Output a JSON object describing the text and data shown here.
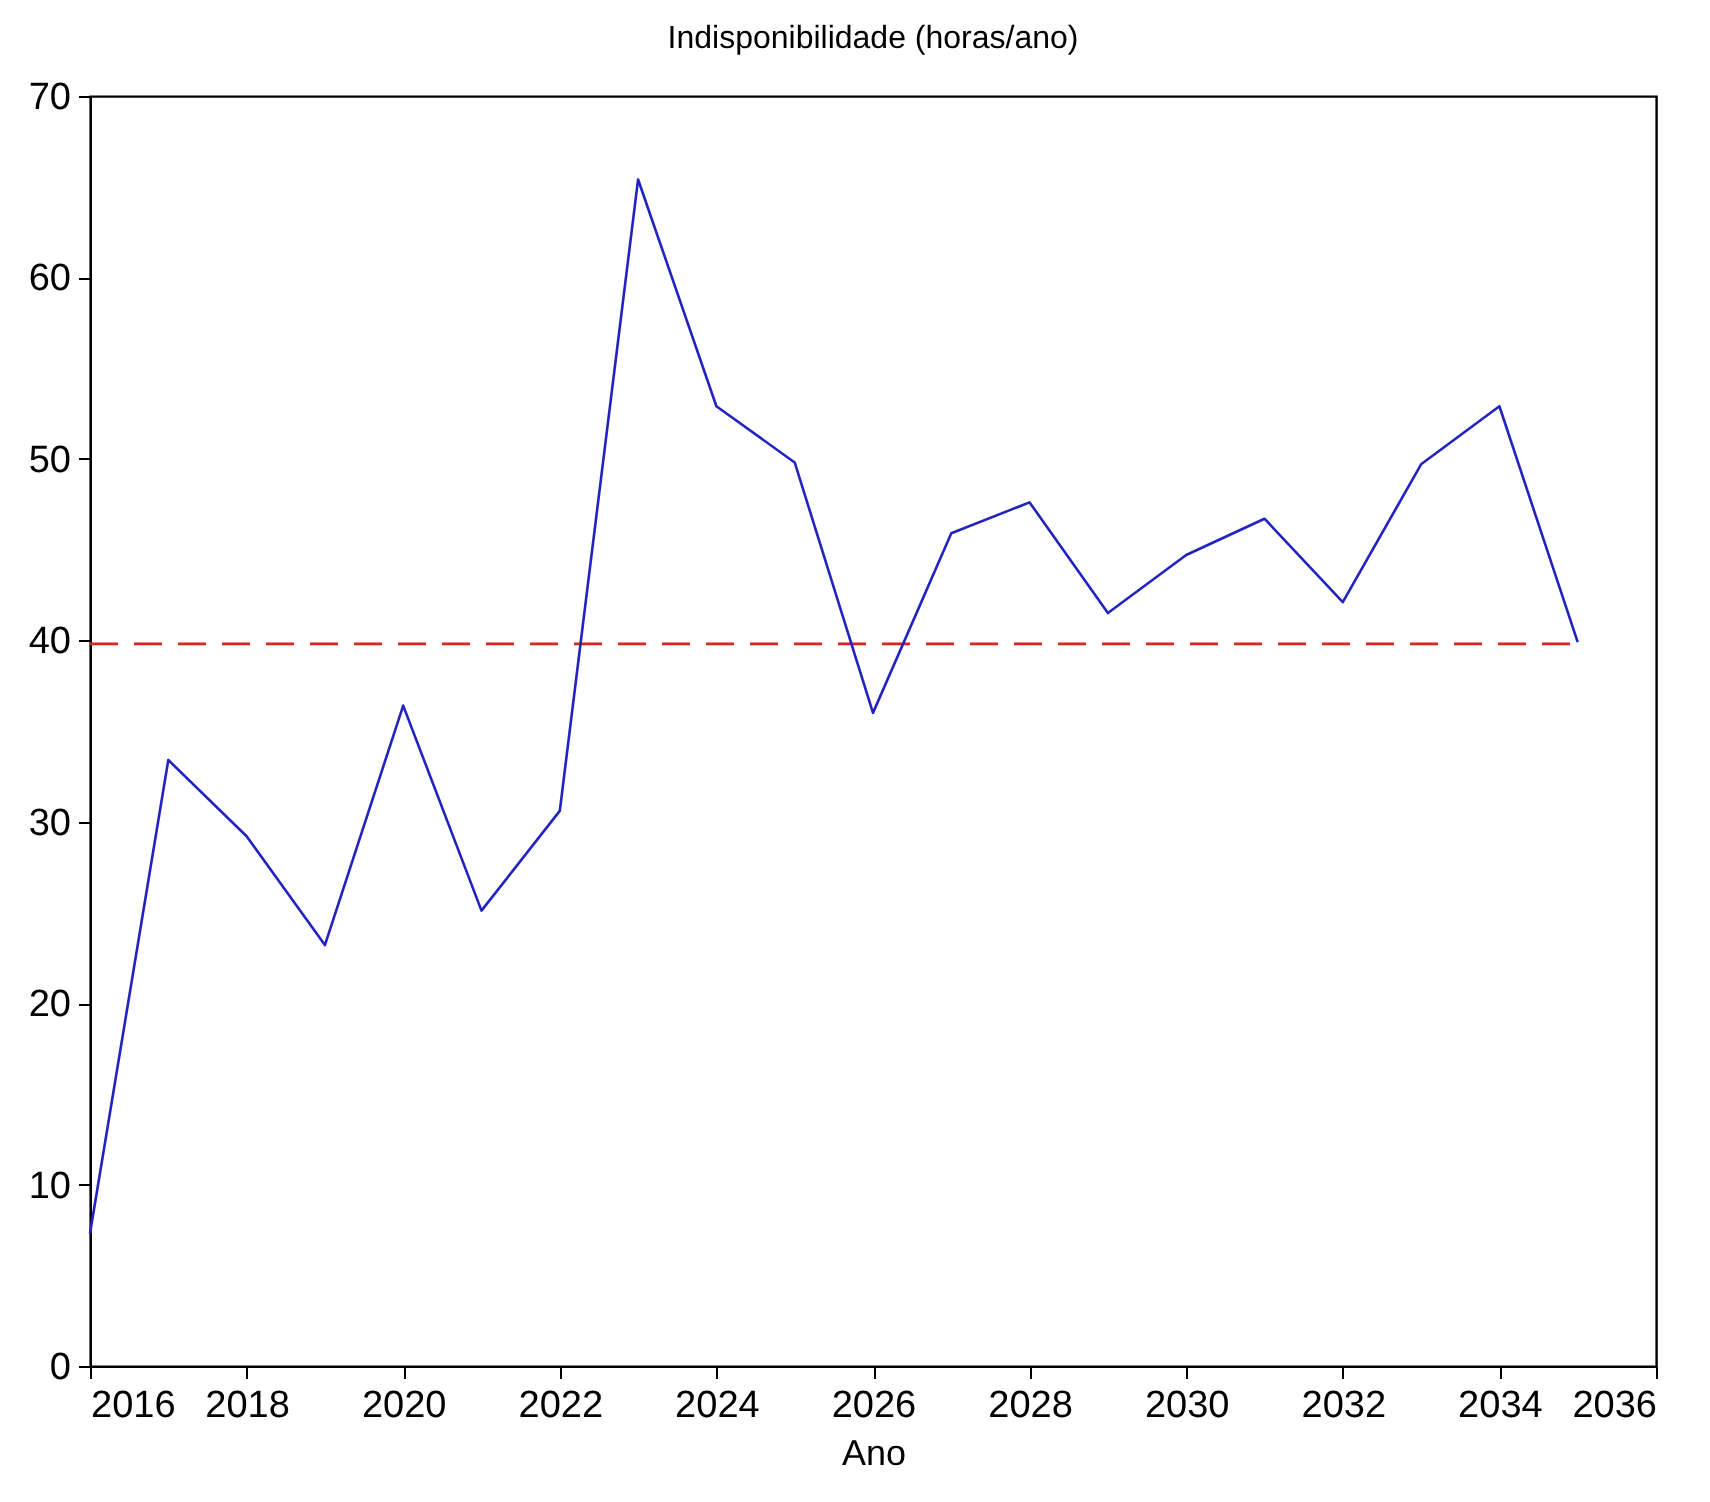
{
  "chart_data": {
    "type": "line",
    "title": "Indisponibilidade (horas/ano)",
    "xlabel": "Ano",
    "x": [
      2016,
      2017,
      2018,
      2019,
      2020,
      2021,
      2022,
      2023,
      2024,
      2025,
      2026,
      2027,
      2028,
      2029,
      2030,
      2031,
      2032,
      2033,
      2034,
      2035
    ],
    "series": [
      {
        "color": "#2222c0",
        "values": [
          7.3,
          33.4,
          29.2,
          23.2,
          36.4,
          25.1,
          30.6,
          65.4,
          52.9,
          49.8,
          36.0,
          45.9,
          47.6,
          41.5,
          44.7,
          46.7,
          42.1,
          49.7,
          52.9,
          39.9
        ]
      }
    ],
    "xlim": [
      2016,
      2036
    ],
    "ylim": [
      0,
      70
    ],
    "xticks": [
      2016,
      2018,
      2020,
      2022,
      2024,
      2026,
      2028,
      2030,
      2032,
      2034,
      2036
    ],
    "yticks": [
      0,
      10,
      20,
      30,
      40,
      50,
      60,
      70
    ],
    "grid": false,
    "marker": "none",
    "line_style": "solid",
    "ref_lines": [
      {
        "axis": "y",
        "value": 39.8,
        "color": "#e02020",
        "line_style": "dashed"
      }
    ]
  }
}
